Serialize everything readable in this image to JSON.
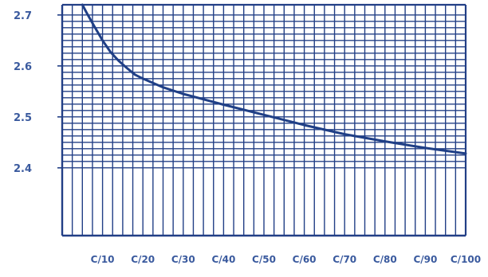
{
  "chart_data": {
    "type": "line",
    "title": "",
    "xlabel": "",
    "ylabel": "",
    "x_tick_labels": [
      "C/10",
      "C/20",
      "C/30",
      "C/40",
      "C/50",
      "C/60",
      "C/70",
      "C/80",
      "C/90",
      "C/100"
    ],
    "y_tick_labels": [
      "2.7",
      "2.6",
      "2.5",
      "2.4"
    ],
    "y_ticks": [
      2.7,
      2.6,
      2.5,
      2.4
    ],
    "ylim": [
      2.267,
      2.72
    ],
    "xlim": [
      0,
      100
    ],
    "grid": true,
    "series": [
      {
        "x": [
          5,
          6,
          8,
          10,
          12,
          14,
          16,
          18,
          20,
          25,
          30,
          40,
          50,
          60,
          70,
          80,
          90,
          100
        ],
        "y": [
          2.72,
          2.705,
          2.677,
          2.65,
          2.627,
          2.61,
          2.596,
          2.583,
          2.575,
          2.558,
          2.545,
          2.524,
          2.504,
          2.484,
          2.466,
          2.452,
          2.439,
          2.428
        ]
      }
    ],
    "colors": {
      "line": "#1f3f86",
      "grid": "#223f86",
      "text": "#3a5a9e"
    }
  }
}
